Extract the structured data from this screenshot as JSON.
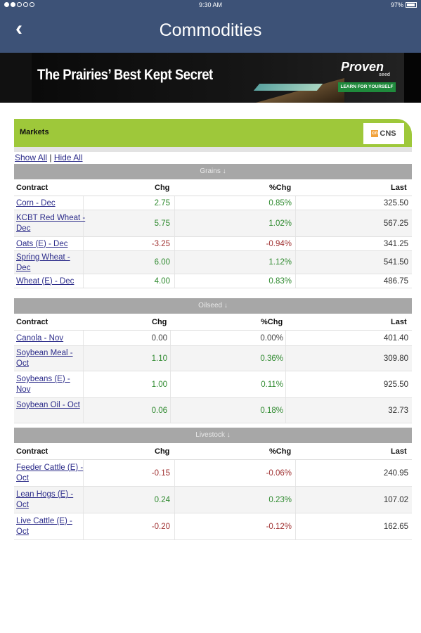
{
  "status_bar": {
    "time": "9:30 AM",
    "battery": "97%"
  },
  "nav": {
    "back_glyph": "‹",
    "title": "Commodities"
  },
  "ad": {
    "headline": "The Prairies’ Best Kept Secret",
    "logo": "Proven",
    "logo_sub": "seed",
    "cta": "LEARN FOR YOURSELF"
  },
  "markets": {
    "label": "Markets",
    "logo_text": "CNS",
    "logo_mark": "cn"
  },
  "toggles": {
    "show_all": "Show All",
    "separator": "|",
    "hide_all": "Hide All"
  },
  "columns": {
    "contract": "Contract",
    "chg": "Chg",
    "pct_chg": "%Chg",
    "last": "Last"
  },
  "sections": [
    {
      "title": "Grains ↓",
      "rows": [
        {
          "contract": "Corn - Dec",
          "chg": "2.75",
          "pct": "0.85%",
          "last": "325.50"
        },
        {
          "contract": "KCBT Red Wheat - Dec",
          "chg": "5.75",
          "pct": "1.02%",
          "last": "567.25"
        },
        {
          "contract": "Oats (E) - Dec",
          "chg": "-3.25",
          "pct": "-0.94%",
          "last": "341.25"
        },
        {
          "contract": "Spring Wheat - Dec",
          "chg": "6.00",
          "pct": "1.12%",
          "last": "541.50"
        },
        {
          "contract": "Wheat (E) - Dec",
          "chg": "4.00",
          "pct": "0.83%",
          "last": "486.75"
        }
      ]
    },
    {
      "title": "Oilseed ↓",
      "rows": [
        {
          "contract": "Canola - Nov",
          "chg": "0.00",
          "pct": "0.00%",
          "last": "401.40"
        },
        {
          "contract": "Soybean Meal - Oct",
          "chg": "1.10",
          "pct": "0.36%",
          "last": "309.80"
        },
        {
          "contract": "Soybeans (E) - Nov",
          "chg": "1.00",
          "pct": "0.11%",
          "last": "925.50"
        },
        {
          "contract": "Soybean Oil - Oct",
          "chg": "0.06",
          "pct": "0.18%",
          "last": "32.73"
        }
      ]
    },
    {
      "title": "Livestock ↓",
      "rows": [
        {
          "contract": "Feeder Cattle (E) - Oct",
          "chg": "-0.15",
          "pct": "-0.06%",
          "last": "240.95"
        },
        {
          "contract": "Lean Hogs (E) - Oct",
          "chg": "0.24",
          "pct": "0.23%",
          "last": "107.02"
        },
        {
          "contract": "Live Cattle (E) - Oct",
          "chg": "-0.20",
          "pct": "-0.12%",
          "last": "162.65"
        }
      ]
    }
  ],
  "colors": {
    "nav_bg": "#3d5277",
    "markets_green": "#9ec83a",
    "positive": "#2f8a2f",
    "negative": "#a03232"
  }
}
